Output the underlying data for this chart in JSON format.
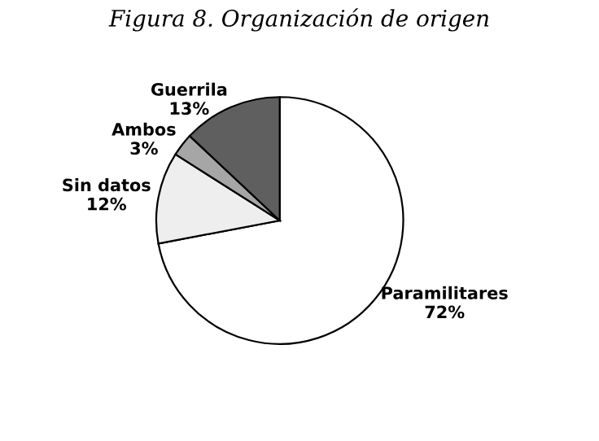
{
  "chart_data": {
    "type": "pie",
    "title": "Figura 8. Organización de origen",
    "categories": [
      "Paramilitares",
      "Sin datos",
      "Ambos",
      "Guerrila"
    ],
    "values": [
      72,
      12,
      3,
      13
    ],
    "value_labels": [
      "72%",
      "12%",
      "3%",
      "13%"
    ],
    "colors": [
      "#ffffff",
      "#eeeeee",
      "#a6a6a6",
      "#5f5f5f"
    ],
    "legend": false
  }
}
